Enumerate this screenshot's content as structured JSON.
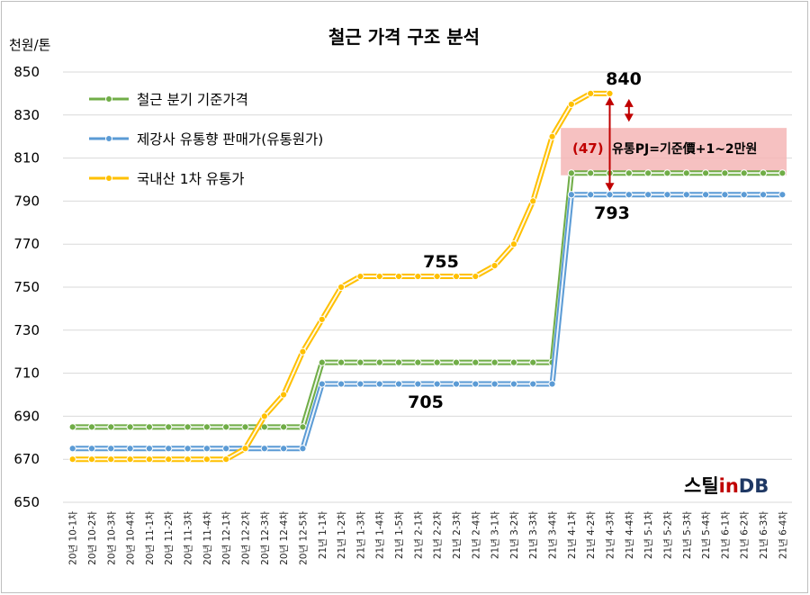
{
  "chart_data": {
    "type": "line",
    "title": "철근 가격 구조 분석",
    "ylabel": "천원/톤",
    "ylim": [
      650,
      850
    ],
    "yticks": [
      650,
      670,
      690,
      710,
      730,
      750,
      770,
      790,
      810,
      830,
      850
    ],
    "grid": "horizontal",
    "legend_position": "top-left",
    "categories": [
      "20년 10-1차",
      "20년 10-2차",
      "20년 10-3차",
      "20년 10-4차",
      "20년 11-1차",
      "20년 11-2차",
      "20년 11-3차",
      "20년 11-4차",
      "20년 12-1차",
      "20년 12-2차",
      "20년 12-3차",
      "20년 12-4차",
      "20년 12-5차",
      "21년 1-1차",
      "21년 1-2차",
      "21년 1-3차",
      "21년 1-4차",
      "21년 1-5차",
      "21년 2-1차",
      "21년 2-2차",
      "21년 2-3차",
      "21년 2-4차",
      "21년 3-1차",
      "21년 3-2차",
      "21년 3-3차",
      "21년 3-4차",
      "21년 4-1차",
      "21년 4-2차",
      "21년 4-3차",
      "21년 4-4차",
      "21년 5-1차",
      "21년 5-2차",
      "21년 5-3차",
      "21년 5-4차",
      "21년 6-1차",
      "21년 6-2차",
      "21년 6-3차",
      "21년 6-4차"
    ],
    "series": [
      {
        "name": "철근 분기 기준가격",
        "color": "#70ad47",
        "values": [
          685,
          685,
          685,
          685,
          685,
          685,
          685,
          685,
          685,
          685,
          685,
          685,
          685,
          715,
          715,
          715,
          715,
          715,
          715,
          715,
          715,
          715,
          715,
          715,
          715,
          715,
          803,
          803,
          803,
          803,
          803,
          803,
          803,
          803,
          803,
          803,
          803,
          803
        ]
      },
      {
        "name": "제강사 유통향 판매가(유통원가)",
        "color": "#5b9bd5",
        "values": [
          675,
          675,
          675,
          675,
          675,
          675,
          675,
          675,
          675,
          675,
          675,
          675,
          675,
          705,
          705,
          705,
          705,
          705,
          705,
          705,
          705,
          705,
          705,
          705,
          705,
          705,
          793,
          793,
          793,
          793,
          793,
          793,
          793,
          793,
          793,
          793,
          793,
          793
        ]
      },
      {
        "name": "국내산 1차 유통가",
        "color": "#ffc000",
        "values": [
          670,
          670,
          670,
          670,
          670,
          670,
          670,
          670,
          670,
          675,
          690,
          700,
          720,
          735,
          750,
          755,
          755,
          755,
          755,
          755,
          755,
          755,
          760,
          770,
          790,
          820,
          835,
          840,
          840,
          null,
          null,
          null,
          null,
          null,
          null,
          null,
          null,
          null
        ]
      }
    ],
    "annotations": {
      "label_840": "840",
      "label_793": "793",
      "label_755": "755",
      "label_705": "705",
      "gap_value": "(47)",
      "gap_text": "유통PJ=기준價+1~2만원"
    }
  },
  "watermark": {
    "prefix": "스틸",
    "middle": "in",
    "suffix": "DB"
  }
}
